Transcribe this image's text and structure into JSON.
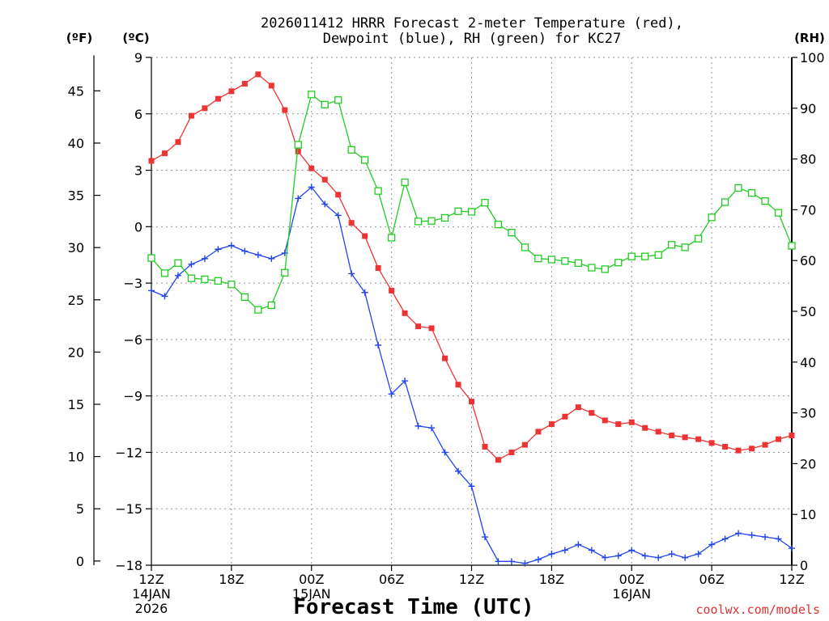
{
  "chart_data": {
    "type": "line",
    "title_line1": "2026011412 HRRR Forecast 2-meter Temperature (red),",
    "title_line2": "Dewpoint (blue), RH (green) for KC27",
    "xlabel": "Forecast Time (UTC)",
    "credit": "coolwx.com/models",
    "unit_f": "(ºF)",
    "unit_c": "(ºC)",
    "unit_rh": "(RH)",
    "x_ticks": [
      {
        "hour": 0,
        "label": "12Z",
        "sub1": "14JAN",
        "sub2": "2026"
      },
      {
        "hour": 6,
        "label": "18Z",
        "sub1": "",
        "sub2": ""
      },
      {
        "hour": 12,
        "label": "00Z",
        "sub1": "15JAN",
        "sub2": ""
      },
      {
        "hour": 18,
        "label": "06Z",
        "sub1": "",
        "sub2": ""
      },
      {
        "hour": 24,
        "label": "12Z",
        "sub1": "",
        "sub2": ""
      },
      {
        "hour": 30,
        "label": "18Z",
        "sub1": "",
        "sub2": ""
      },
      {
        "hour": 36,
        "label": "00Z",
        "sub1": "16JAN",
        "sub2": ""
      },
      {
        "hour": 42,
        "label": "06Z",
        "sub1": "",
        "sub2": ""
      },
      {
        "hour": 48,
        "label": "12Z",
        "sub1": "",
        "sub2": ""
      }
    ],
    "xlim": [
      0,
      48
    ],
    "ylim_c": [
      -18,
      9
    ],
    "y_ticks_c": [
      9,
      6,
      3,
      0,
      -3,
      -6,
      -9,
      -12,
      -15,
      -18
    ],
    "y_ticks_c_labels": [
      "9",
      "6",
      "3",
      "0",
      "−3",
      "−6",
      "−9",
      "−12",
      "−15",
      "−18"
    ],
    "y_ticks_f": [
      45,
      40,
      35,
      30,
      25,
      20,
      15,
      10,
      5,
      0
    ],
    "ylim_rh": [
      0,
      100
    ],
    "y_ticks_rh": [
      100,
      90,
      80,
      70,
      60,
      50,
      40,
      30,
      20,
      10,
      0
    ],
    "grid": true,
    "series": [
      {
        "name": "Temperature",
        "color": "#ee3333",
        "marker": "filled-square",
        "axis": "celsius",
        "values": [
          3.5,
          3.9,
          4.5,
          5.9,
          6.3,
          6.8,
          7.2,
          7.6,
          8.1,
          7.5,
          6.2,
          4.0,
          3.1,
          2.5,
          1.7,
          0.2,
          -0.5,
          -2.2,
          -3.4,
          -4.6,
          -5.3,
          -5.4,
          -7.0,
          -8.4,
          -9.3,
          -11.7,
          -12.4,
          -12.0,
          -11.6,
          -10.9,
          -10.5,
          -10.1,
          -9.6,
          -9.9,
          -10.3,
          -10.5,
          -10.4,
          -10.7,
          -10.9,
          -11.1,
          -11.2,
          -11.3,
          -11.5,
          -11.7,
          -11.9,
          -11.8,
          -11.6,
          -11.3,
          -11.1
        ]
      },
      {
        "name": "Dewpoint",
        "color": "#2244ee",
        "marker": "plus",
        "axis": "celsius",
        "values": [
          -3.4,
          -3.7,
          -2.6,
          -2.0,
          -1.7,
          -1.2,
          -1.0,
          -1.3,
          -1.5,
          -1.7,
          -1.4,
          1.5,
          2.1,
          1.2,
          0.6,
          -2.5,
          -3.5,
          -6.3,
          -8.9,
          -8.2,
          -10.6,
          -10.7,
          -12.0,
          -13.0,
          -13.8,
          -16.5,
          -17.8,
          -17.8,
          -17.9,
          -17.7,
          -17.4,
          -17.2,
          -16.9,
          -17.2,
          -17.6,
          -17.5,
          -17.2,
          -17.5,
          -17.6,
          -17.4,
          -17.6,
          -17.4,
          -16.9,
          -16.6,
          -16.3,
          -16.4,
          -16.5,
          -16.6,
          -17.1
        ]
      },
      {
        "name": "RH",
        "color": "#22cc22",
        "marker": "open-square",
        "axis": "rh",
        "values": [
          60.5,
          57.5,
          59.5,
          56.5,
          56.3,
          56.0,
          55.3,
          52.8,
          50.3,
          51.2,
          57.6,
          82.8,
          92.7,
          90.7,
          91.6,
          81.8,
          79.8,
          73.7,
          64.5,
          75.4,
          67.7,
          67.8,
          68.4,
          69.7,
          69.6,
          71.4,
          67.1,
          65.5,
          62.6,
          60.4,
          60.2,
          59.9,
          59.5,
          58.6,
          58.3,
          59.6,
          60.8,
          60.8,
          61.1,
          63.1,
          62.6,
          64.3,
          68.5,
          71.5,
          74.3,
          73.3,
          71.7,
          69.4,
          62.9
        ]
      }
    ]
  }
}
